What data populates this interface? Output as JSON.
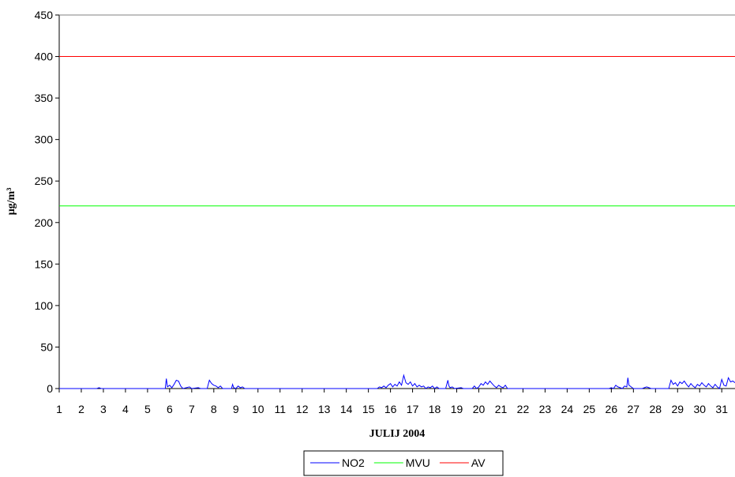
{
  "chart_data": {
    "type": "line",
    "xlabel": "JULIJ 2004",
    "ylabel": "µg/m³",
    "ylim": [
      0,
      450
    ],
    "yticks": [
      0,
      50,
      100,
      150,
      200,
      250,
      300,
      350,
      400,
      450
    ],
    "xlim": [
      1,
      31.6
    ],
    "xticks": [
      "1",
      "2",
      "3",
      "4",
      "5",
      "6",
      "7",
      "8",
      "9",
      "10",
      "11",
      "12",
      "13",
      "14",
      "15",
      "16",
      "17",
      "18",
      "19",
      "20",
      "21",
      "22",
      "23",
      "24",
      "25",
      "26",
      "27",
      "28",
      "29",
      "30",
      "31"
    ],
    "legend_position": "bottom",
    "grid": false,
    "series": [
      {
        "name": "NO2",
        "color": "#0000ff",
        "points": [
          [
            1.0,
            0
          ],
          [
            2.7,
            0
          ],
          [
            2.8,
            1
          ],
          [
            2.9,
            0
          ],
          [
            5.8,
            0
          ],
          [
            5.85,
            12
          ],
          [
            5.9,
            2
          ],
          [
            6.0,
            4
          ],
          [
            6.1,
            1
          ],
          [
            6.2,
            5
          ],
          [
            6.3,
            10
          ],
          [
            6.4,
            9
          ],
          [
            6.5,
            3
          ],
          [
            6.6,
            0
          ],
          [
            6.9,
            2
          ],
          [
            7.0,
            0
          ],
          [
            7.3,
            1
          ],
          [
            7.4,
            0
          ],
          [
            7.7,
            0
          ],
          [
            7.8,
            10
          ],
          [
            7.9,
            6
          ],
          [
            8.0,
            4
          ],
          [
            8.1,
            3
          ],
          [
            8.2,
            1
          ],
          [
            8.3,
            3
          ],
          [
            8.4,
            0
          ],
          [
            8.8,
            0
          ],
          [
            8.85,
            5
          ],
          [
            8.9,
            1
          ],
          [
            9.0,
            0
          ],
          [
            9.1,
            3
          ],
          [
            9.2,
            1
          ],
          [
            9.3,
            2
          ],
          [
            9.4,
            0
          ],
          [
            15.4,
            0
          ],
          [
            15.5,
            2
          ],
          [
            15.6,
            1
          ],
          [
            15.7,
            3
          ],
          [
            15.8,
            1
          ],
          [
            15.9,
            4
          ],
          [
            16.0,
            6
          ],
          [
            16.1,
            2
          ],
          [
            16.2,
            5
          ],
          [
            16.3,
            3
          ],
          [
            16.4,
            8
          ],
          [
            16.5,
            4
          ],
          [
            16.6,
            16
          ],
          [
            16.7,
            7
          ],
          [
            16.8,
            5
          ],
          [
            16.9,
            8
          ],
          [
            17.0,
            3
          ],
          [
            17.1,
            6
          ],
          [
            17.2,
            2
          ],
          [
            17.3,
            4
          ],
          [
            17.4,
            2
          ],
          [
            17.5,
            3
          ],
          [
            17.6,
            0
          ],
          [
            17.7,
            2
          ],
          [
            17.8,
            1
          ],
          [
            17.9,
            3
          ],
          [
            18.0,
            0
          ],
          [
            18.1,
            2
          ],
          [
            18.2,
            0
          ],
          [
            18.5,
            0
          ],
          [
            18.6,
            10
          ],
          [
            18.65,
            3
          ],
          [
            18.7,
            1
          ],
          [
            18.8,
            2
          ],
          [
            18.9,
            0
          ],
          [
            19.2,
            1
          ],
          [
            19.3,
            0
          ],
          [
            19.7,
            0
          ],
          [
            19.8,
            3
          ],
          [
            19.9,
            0
          ],
          [
            20.0,
            2
          ],
          [
            20.1,
            6
          ],
          [
            20.2,
            4
          ],
          [
            20.3,
            8
          ],
          [
            20.4,
            5
          ],
          [
            20.5,
            9
          ],
          [
            20.6,
            6
          ],
          [
            20.7,
            3
          ],
          [
            20.8,
            1
          ],
          [
            20.9,
            4
          ],
          [
            21.0,
            2
          ],
          [
            21.1,
            1
          ],
          [
            21.2,
            4
          ],
          [
            21.3,
            0
          ],
          [
            25.9,
            0
          ],
          [
            26.0,
            1
          ],
          [
            26.1,
            0
          ],
          [
            26.2,
            4
          ],
          [
            26.3,
            2
          ],
          [
            26.4,
            1
          ],
          [
            26.5,
            0
          ],
          [
            26.6,
            3
          ],
          [
            26.7,
            2
          ],
          [
            26.75,
            13
          ],
          [
            26.8,
            4
          ],
          [
            26.9,
            2
          ],
          [
            27.0,
            0
          ],
          [
            27.4,
            0
          ],
          [
            27.5,
            1
          ],
          [
            27.6,
            2
          ],
          [
            27.7,
            1
          ],
          [
            27.8,
            0
          ],
          [
            28.6,
            0
          ],
          [
            28.7,
            10
          ],
          [
            28.8,
            5
          ],
          [
            28.9,
            7
          ],
          [
            29.0,
            3
          ],
          [
            29.1,
            8
          ],
          [
            29.2,
            6
          ],
          [
            29.3,
            9
          ],
          [
            29.4,
            5
          ],
          [
            29.5,
            2
          ],
          [
            29.6,
            6
          ],
          [
            29.7,
            3
          ],
          [
            29.8,
            1
          ],
          [
            29.9,
            5
          ],
          [
            30.0,
            3
          ],
          [
            30.1,
            7
          ],
          [
            30.2,
            4
          ],
          [
            30.3,
            2
          ],
          [
            30.4,
            6
          ],
          [
            30.5,
            3
          ],
          [
            30.6,
            1
          ],
          [
            30.7,
            5
          ],
          [
            30.8,
            2
          ],
          [
            30.9,
            0
          ],
          [
            31.0,
            11
          ],
          [
            31.1,
            4
          ],
          [
            31.2,
            3
          ],
          [
            31.3,
            13
          ],
          [
            31.4,
            8
          ],
          [
            31.5,
            9
          ],
          [
            31.6,
            7
          ]
        ]
      },
      {
        "name": "MVU",
        "color": "#00ff00",
        "constant": 220
      },
      {
        "name": "AV",
        "color": "#ff0000",
        "constant": 400
      }
    ]
  }
}
